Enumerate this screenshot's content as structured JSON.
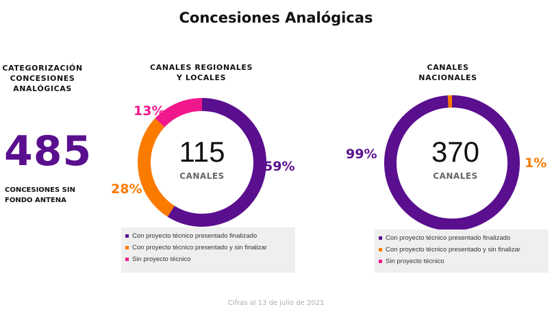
{
  "page": {
    "title": "Concesiones Analógicas",
    "footer": "Cifras al 13 de julio de 2021"
  },
  "left_panel": {
    "heading_lines": [
      "CATEGORIZACIÓN",
      "CONCESIONES",
      "ANALÓGICAS"
    ],
    "big_number": "485",
    "sub_lines": [
      "CONCESIONES SIN",
      "FONDO ANTENA"
    ]
  },
  "colors": {
    "purple": "#5a0f8e",
    "orange": "#fb7a00",
    "pink": "#f0188c"
  },
  "chart_data": [
    {
      "type": "pie",
      "variant": "donut",
      "heading_lines": [
        "CANALES REGIONALES",
        "Y LOCALES"
      ],
      "center_value": "115",
      "center_label": "CANALES",
      "categories": [
        "Con proyecto técnico presentado finalizado",
        "Con proyecto técnico presentado y sin finalizar",
        "Sin proyecto técnico"
      ],
      "values": [
        59,
        28,
        13
      ],
      "labels": [
        "59%",
        "28%",
        "13%"
      ],
      "colors": [
        "#5a0f8e",
        "#fb7a00",
        "#f0188c"
      ],
      "legend": [
        "Con proyecto técnico presentado finalizado",
        "Con proyecto técnico presentado y sin finalizar",
        "Sin proyecto técnico"
      ]
    },
    {
      "type": "pie",
      "variant": "donut",
      "heading_lines": [
        "CANALES",
        "NACIONALES"
      ],
      "center_value": "370",
      "center_label": "CANALES",
      "categories": [
        "Con proyecto técnico presentado finalizado",
        "Con proyecto técnico presentado y sin finalizar",
        "Sin proyecto técnico"
      ],
      "values": [
        99,
        1,
        0
      ],
      "labels": [
        "99%",
        "1%",
        ""
      ],
      "colors": [
        "#5a0f8e",
        "#fb7a00",
        "#f0188c"
      ],
      "legend": [
        "Con proyecto técnico presentado finalizado",
        "Con proyecto técnico presentado y sin finalizar",
        "Sin proyecto técnico"
      ]
    }
  ]
}
